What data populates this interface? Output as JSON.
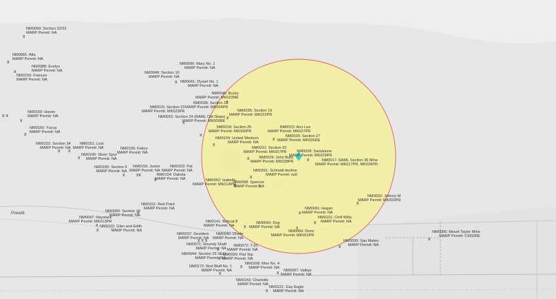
{
  "map": {
    "place_labels": [
      "Prewitt"
    ],
    "buffer_fill": "#f5f09c",
    "buffer_stroke": "#e05a5a",
    "center_marker_color": "#29d3e6",
    "sites": [
      {
        "name": "NM0059: Section 32/33",
        "permit": "MARP Permit: NA"
      },
      {
        "name": "NM0081: Alta",
        "permit": "MARP Permit: NA"
      },
      {
        "name": "NM0088: Evelyn",
        "permit": "MARP Permit: NA"
      },
      {
        "name": "NM0150: Frances",
        "permit": "MARP Permit: NA"
      },
      {
        "name": "NM0095: Mary No. 1",
        "permit": "MARP Permit: NA"
      },
      {
        "name": "NM0048: Section 10",
        "permit": "MARP Permit: NA"
      },
      {
        "name": "NM0041: Dysart No. 1",
        "permit": "MARP Permit: NA"
      },
      {
        "name": "NM0046: Bucky",
        "permit": "MARP Permit: MK023ME"
      },
      {
        "name": "NM0038: Section 13",
        "permit": "MARP Permit: MK004PR"
      },
      {
        "name": "NM0036: Section 19",
        "permit": "MARP Permit: MK022PR"
      },
      {
        "name": "NM0015: Section 23",
        "permit": "MARP Permit: MK023PR"
      },
      {
        "name": "NM0016: Section 24 (RAML Old Slope)",
        "permit": "MARP Permit: MK009RE"
      },
      {
        "name": "NM0159: Haven",
        "permit": "MARP Permit: NA"
      },
      {
        "name": "NM0160: Yucca",
        "permit": "MARP Permit: NA"
      },
      {
        "name": "NM0023: Ann Lee",
        "permit": "MARP Permit: MK027PR"
      },
      {
        "name": "NM0026: Section 27",
        "permit": "MARP Permit: MK005RE"
      },
      {
        "name": "NM0018: Section 25",
        "permit": "MARP Permit: MK006PR"
      },
      {
        "name": "NM0104: United Western",
        "permit": "MARP Permit: NA"
      },
      {
        "name": "NM0152: Section 34",
        "permit": "MARP Permit: NA"
      },
      {
        "name": "NM0151: Lost",
        "permit": "MARP Permit: NA"
      },
      {
        "name": "NM0031: Section 32",
        "permit": "MARP Permit: MK007PR"
      },
      {
        "name": "NM0028: Sandstone",
        "permit": "MARP Permit: MK029PR"
      },
      {
        "name": "NM0029: John Bully",
        "permit": "MARP Permit: MK028PR"
      },
      {
        "name": "NM0017: RAML Section 36 Mine",
        "permit": "MARP Permit: MK017PR, MK026PR"
      },
      {
        "name": "NM0105: Febco",
        "permit": "MARP Permit: NA"
      },
      {
        "name": "NM0106: Silver Spur",
        "permit": "MARP Permit: NA"
      },
      {
        "name": "NM0165: Section 5",
        "permit": "MARP Permit: NA"
      },
      {
        "name": "NM0155: Junior",
        "permit": "MARP Permit: NA"
      },
      {
        "name": "NM0153: Pat",
        "permit": "MARP Permit: NA"
      },
      {
        "name": "NM0154: Dakota",
        "permit": "MARP Permit: NA"
      },
      {
        "name": "NM0261: Schmidt decline",
        "permit": "MARP Permit: null"
      },
      {
        "name": "NM0052: Isabella",
        "permit": "MARP Permit: MK014PR"
      },
      {
        "name": "NM0098: Spencer",
        "permit": "MARP Permit: NA"
      },
      {
        "name": "NM0032: Johnny M",
        "permit": "MARP Permit: MK003PR"
      },
      {
        "name": "NM0161: Red Point",
        "permit": "MARP Permit: NA"
      },
      {
        "name": "NM0099: Section 18",
        "permit": "MARP Permit: NA"
      },
      {
        "name": "NM0047: Haystack",
        "permit": "MARP Permit: MK013PR"
      },
      {
        "name": "NM0102: Glen and Edith",
        "permit": "MARP Permit: NA"
      },
      {
        "name": "NM0091: Hogan",
        "permit": "MARP Permit: NA"
      },
      {
        "name": "NM0101: Chill Willa",
        "permit": "MARP Permit: NA"
      },
      {
        "name": "NM0141: Bobcat",
        "permit": "MARP Permit: NA"
      },
      {
        "name": "NM0043: Dog",
        "permit": "MARP Permit: NA"
      },
      {
        "name": "NM0060: Doris",
        "permit": "MARP Permit: MK001PR"
      },
      {
        "name": "NM0037: Desidero",
        "permit": "MARP Permit: NA"
      },
      {
        "name": "NM0040: Divide",
        "permit": "MARP Permit: NA"
      },
      {
        "name": "NM0071: Roundy Shaft",
        "permit": "MARP Permit: NA"
      },
      {
        "name": "NM0072: T-20",
        "permit": "MARP Permit: NA"
      },
      {
        "name": "NM0044: Section 25 SEQ",
        "permit": "MARP Permit: NA"
      },
      {
        "name": "NM0090: Flat Top",
        "permit": "MARP Permit: NA"
      },
      {
        "name": "NM0030: San Mateo",
        "permit": "MARP Permit: NA"
      },
      {
        "name": "NM0066: Mount Taylor Mine",
        "permit": "MARP Permit: CI002RE"
      },
      {
        "name": "NM0172: Red Bluff No. 1",
        "permit": "MARP Permit: NA"
      },
      {
        "name": "NM0168: Moe No. 4",
        "permit": "MARP Permit: NA"
      },
      {
        "name": "NM0097: Vallejo",
        "permit": "MARP Permit: NA"
      },
      {
        "name": "NM0143: Charlotte",
        "permit": "MARP Permit: NA"
      },
      {
        "name": "NM0121: Gay Eagle",
        "permit": "MARP Permit: NA"
      }
    ]
  }
}
